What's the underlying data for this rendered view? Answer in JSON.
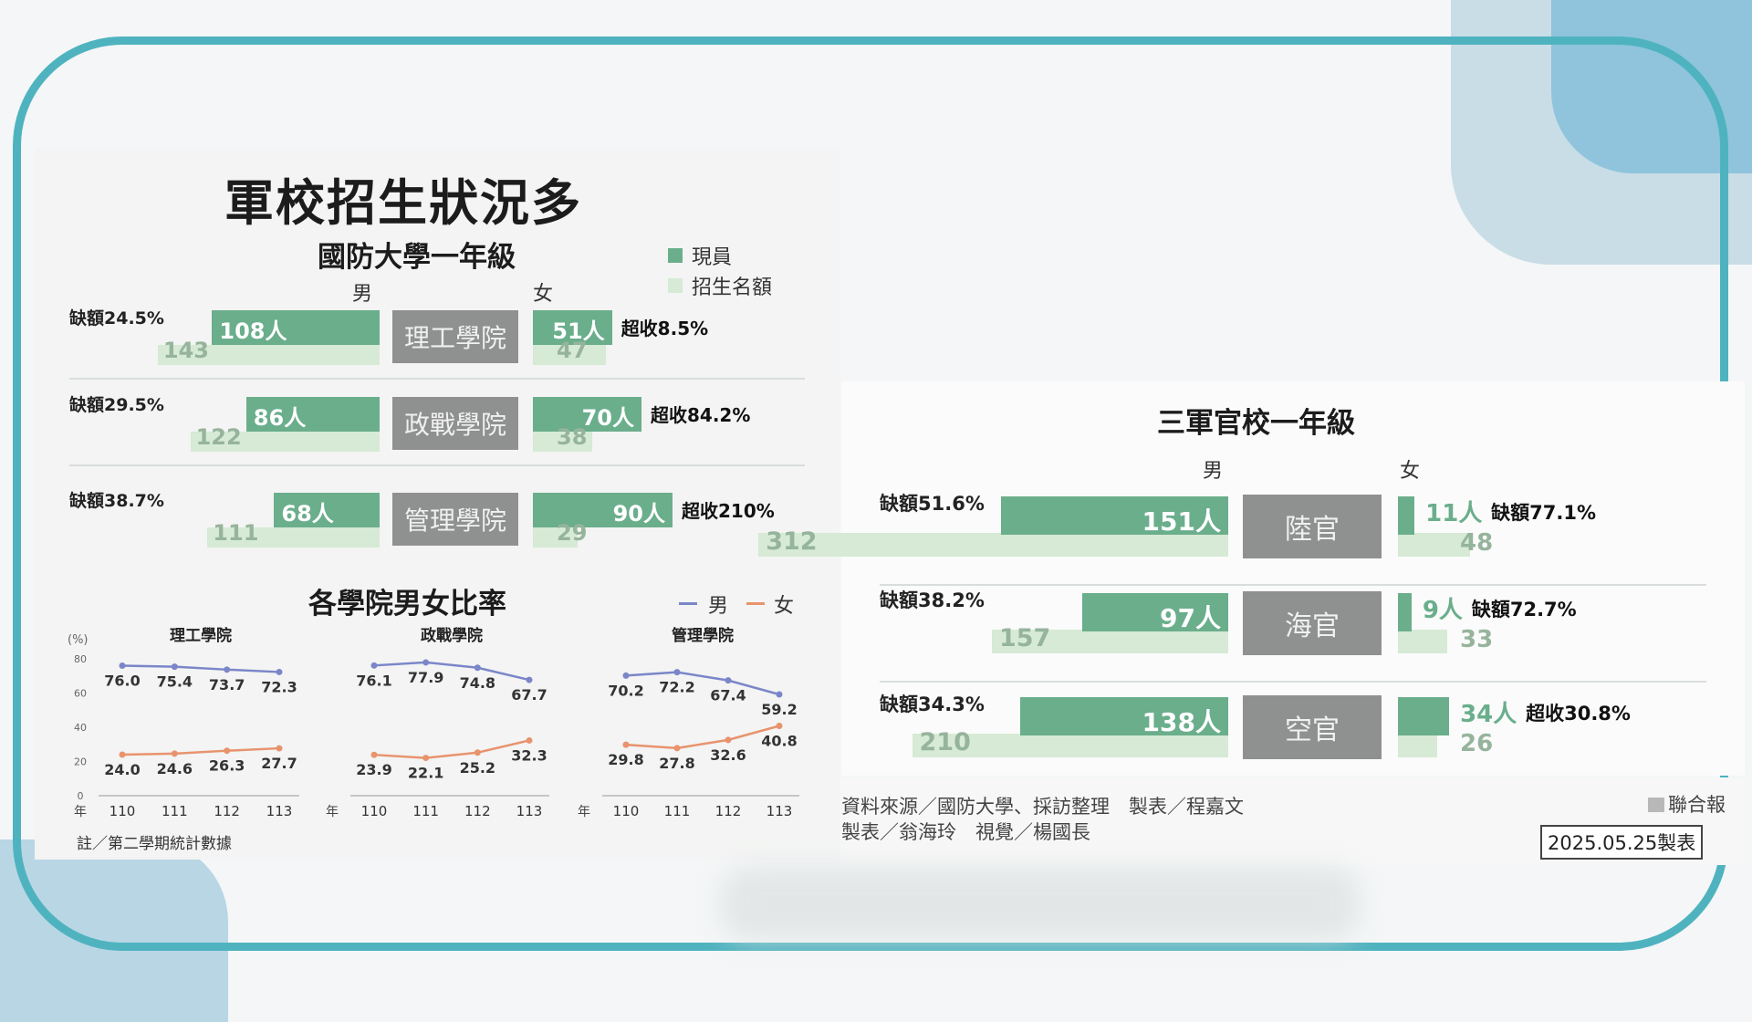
{
  "colors": {
    "current": "#6aae8c",
    "quota": "#d6ead5",
    "male_line": "#7b86c9",
    "female_line": "#e8936e",
    "category_bg": "#8f9090"
  },
  "title": "軍校招生狀況多",
  "ndu": {
    "subtitle": "國防大學一年級",
    "legend": {
      "current": "現員",
      "quota": "招生名額"
    },
    "male_label": "男",
    "female_label": "女",
    "rows": [
      {
        "category": "理工學院",
        "male_current": 108,
        "male_current_label": "108人",
        "male_quota": 143,
        "male_quota_label": "143",
        "male_note": "缺額24.5%",
        "female_current": 51,
        "female_current_label": "51人",
        "female_quota": 47,
        "female_quota_label": "47",
        "female_note": "超收8.5%"
      },
      {
        "category": "政戰學院",
        "male_current": 86,
        "male_current_label": "86人",
        "male_quota": 122,
        "male_quota_label": "122",
        "male_note": "缺額29.5%",
        "female_current": 70,
        "female_current_label": "70人",
        "female_quota": 38,
        "female_quota_label": "38",
        "female_note": "超收84.2%"
      },
      {
        "category": "管理學院",
        "male_current": 68,
        "male_current_label": "68人",
        "male_quota": 111,
        "male_quota_label": "111",
        "male_note": "缺額38.7%",
        "female_current": 90,
        "female_current_label": "90人",
        "female_quota": 29,
        "female_quota_label": "29",
        "female_note": "超收210%"
      }
    ]
  },
  "ratio": {
    "subtitle": "各學院男女比率",
    "legend": {
      "male": "男",
      "female": "女"
    },
    "unit": "(%)",
    "year_label": "年",
    "note": "註／第二學期統計數據"
  },
  "academies": {
    "subtitle": "三軍官校一年級",
    "male_label": "男",
    "female_label": "女",
    "rows": [
      {
        "category": "陸官",
        "male_current": 151,
        "male_current_label": "151人",
        "male_quota": 312,
        "male_quota_label": "312",
        "male_note": "缺額51.6%",
        "female_current": 11,
        "female_current_label": "11人",
        "female_quota": 48,
        "female_quota_label": "48",
        "female_note": "缺額77.1%"
      },
      {
        "category": "海官",
        "male_current": 97,
        "male_current_label": "97人",
        "male_quota": 157,
        "male_quota_label": "157",
        "male_note": "缺額38.2%",
        "female_current": 9,
        "female_current_label": "9人",
        "female_quota": 33,
        "female_quota_label": "33",
        "female_note": "缺額72.7%"
      },
      {
        "category": "空官",
        "male_current": 138,
        "male_current_label": "138人",
        "male_quota": 210,
        "male_quota_label": "210",
        "male_note": "缺額34.3%",
        "female_current": 34,
        "female_current_label": "34人",
        "female_quota": 26,
        "female_quota_label": "26",
        "female_note": "超收30.8%"
      }
    ]
  },
  "footer": {
    "source": "資料來源／國防大學、採訪整理　製表／程嘉文",
    "credits": "製表／翁海玲　視覺／楊國長",
    "brand": "聯合報",
    "date": "2025.05.25製表"
  },
  "chart_data": [
    {
      "type": "bar",
      "title": "國防大學一年級",
      "categories": [
        "理工學院",
        "政戰學院",
        "管理學院"
      ],
      "series": [
        {
          "name": "現員 男",
          "values": [
            108,
            86,
            68
          ]
        },
        {
          "name": "招生名額 男",
          "values": [
            143,
            122,
            111
          ]
        },
        {
          "name": "現員 女",
          "values": [
            51,
            70,
            90
          ]
        },
        {
          "name": "招生名額 女",
          "values": [
            47,
            38,
            29
          ]
        }
      ]
    },
    {
      "type": "line",
      "title": "理工學院",
      "x": [
        "110",
        "111",
        "112",
        "113"
      ],
      "ylim": [
        0,
        80
      ],
      "yticks": [
        "0",
        "20",
        "40",
        "60",
        "80"
      ],
      "series": [
        {
          "name": "男",
          "values": [
            76.0,
            75.4,
            73.7,
            72.3
          ],
          "labels": [
            "76.0",
            "75.4",
            "73.7",
            "72.3"
          ]
        },
        {
          "name": "女",
          "values": [
            24.0,
            24.6,
            26.3,
            27.7
          ],
          "labels": [
            "24.0",
            "24.6",
            "26.3",
            "27.7"
          ]
        }
      ]
    },
    {
      "type": "line",
      "title": "政戰學院",
      "x": [
        "110",
        "111",
        "112",
        "113"
      ],
      "ylim": [
        0,
        80
      ],
      "series": [
        {
          "name": "男",
          "values": [
            76.1,
            77.9,
            74.8,
            67.7
          ],
          "labels": [
            "76.1",
            "77.9",
            "74.8",
            "67.7"
          ]
        },
        {
          "name": "女",
          "values": [
            23.9,
            22.1,
            25.2,
            32.3
          ],
          "labels": [
            "23.9",
            "22.1",
            "25.2",
            "32.3"
          ]
        }
      ]
    },
    {
      "type": "line",
      "title": "管理學院",
      "x": [
        "110",
        "111",
        "112",
        "113"
      ],
      "ylim": [
        0,
        80
      ],
      "series": [
        {
          "name": "男",
          "values": [
            70.2,
            72.2,
            67.4,
            59.2
          ],
          "labels": [
            "70.2",
            "72.2",
            "67.4",
            "59.2"
          ]
        },
        {
          "name": "女",
          "values": [
            29.8,
            27.8,
            32.6,
            40.8
          ],
          "labels": [
            "29.8",
            "27.8",
            "32.6",
            "40.8"
          ]
        }
      ]
    },
    {
      "type": "bar",
      "title": "三軍官校一年級",
      "categories": [
        "陸官",
        "海官",
        "空官"
      ],
      "series": [
        {
          "name": "現員 男",
          "values": [
            151,
            97,
            138
          ]
        },
        {
          "name": "招生名額 男",
          "values": [
            312,
            157,
            210
          ]
        },
        {
          "name": "現員 女",
          "values": [
            11,
            9,
            34
          ]
        },
        {
          "name": "招生名額 女",
          "values": [
            48,
            33,
            26
          ]
        }
      ]
    }
  ]
}
